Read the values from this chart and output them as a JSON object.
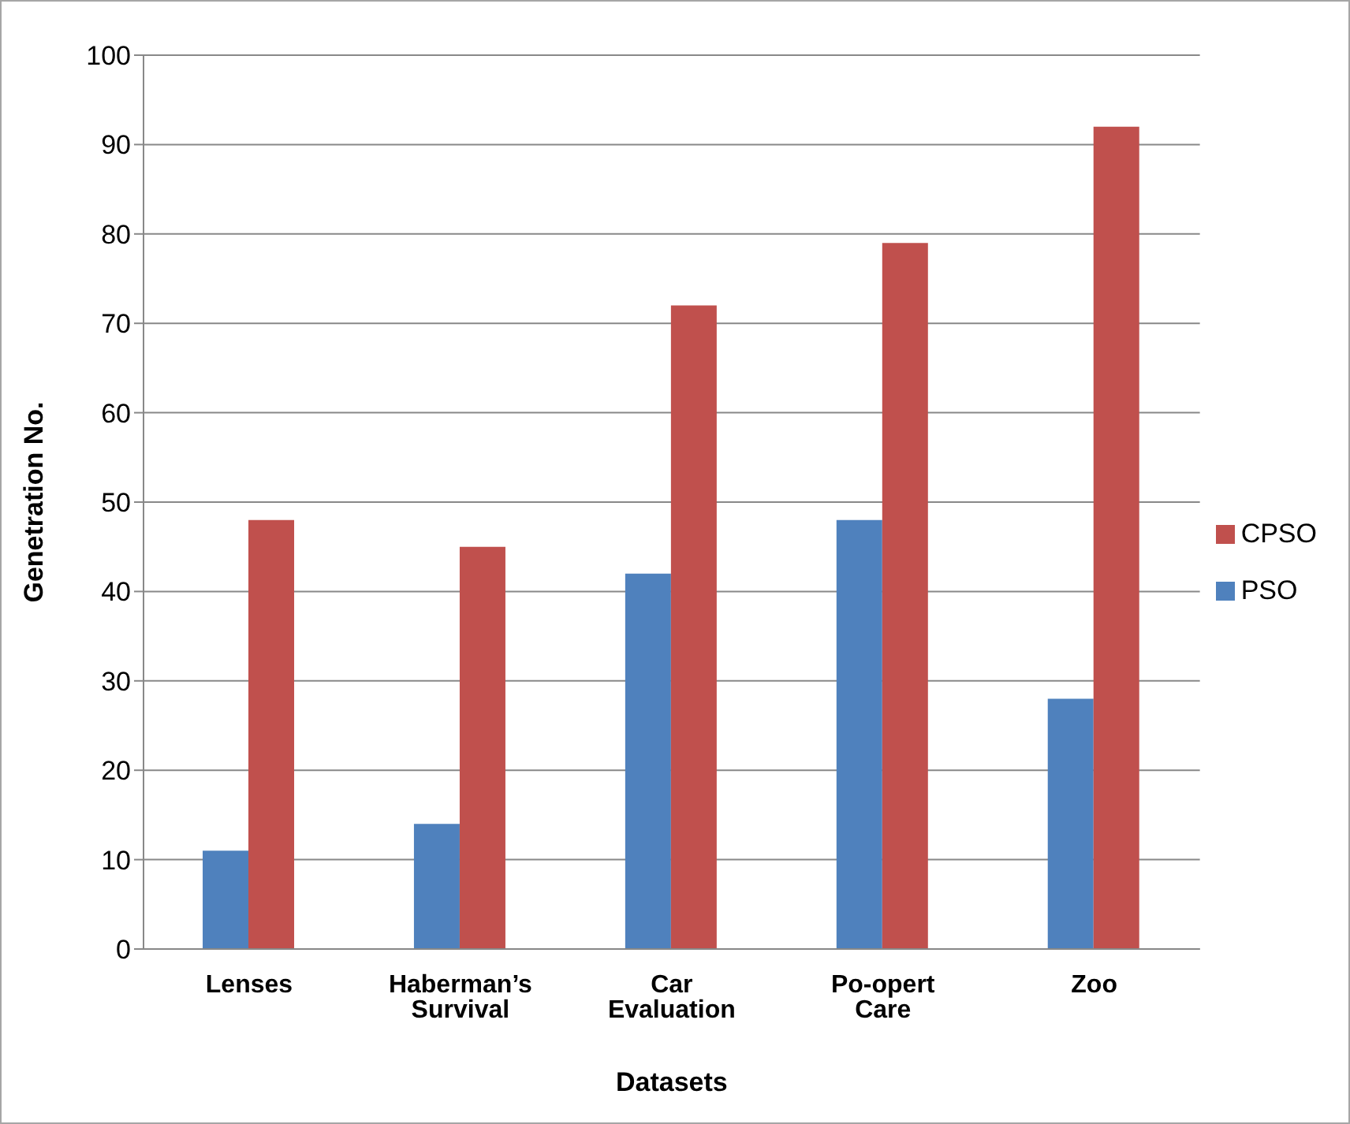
{
  "chart_data": {
    "type": "bar",
    "xlabel": "Datasets",
    "ylabel": "Genetration No.",
    "categories": [
      "Lenses",
      "Haberman’s Survival",
      "Car Evaluation",
      "Po-opert Care",
      "Zoo"
    ],
    "series": [
      {
        "name": "PSO",
        "color": "#4f81bd",
        "values": [
          11,
          14,
          42,
          48,
          28
        ]
      },
      {
        "name": "CPSO",
        "color": "#c0504d",
        "values": [
          48,
          45,
          72,
          79,
          92
        ]
      }
    ],
    "ylim": [
      0,
      100
    ],
    "yticks": [
      0,
      10,
      20,
      30,
      40,
      50,
      60,
      70,
      80,
      90,
      100
    ],
    "grid": "y",
    "legend": "right"
  }
}
